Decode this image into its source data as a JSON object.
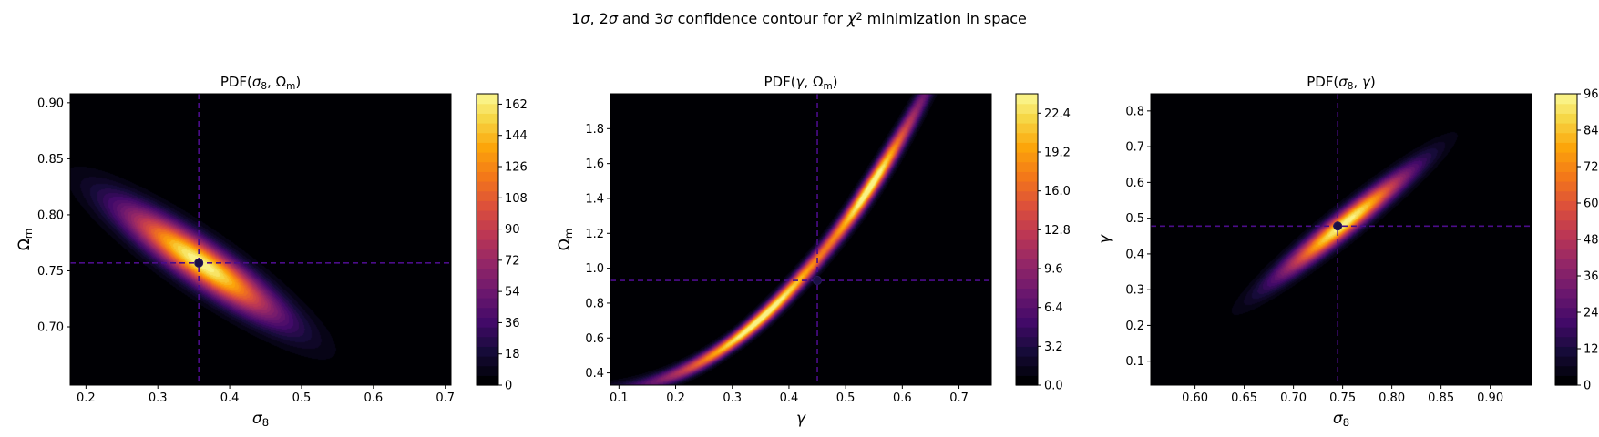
{
  "figure": {
    "suptitle_parts": [
      {
        "t": "1",
        "s": "n"
      },
      {
        "t": "σ",
        "s": "i"
      },
      {
        "t": ", 2",
        "s": "n"
      },
      {
        "t": "σ",
        "s": "i"
      },
      {
        "t": " and 3",
        "s": "n"
      },
      {
        "t": "σ",
        "s": "i"
      },
      {
        "t": " confidence contour for ",
        "s": "n"
      },
      {
        "t": "χ",
        "s": "i"
      },
      {
        "t": "2",
        "s": "sup"
      },
      {
        "t": " minimization in space",
        "s": "n"
      }
    ]
  },
  "colors": {
    "colormap": "inferno",
    "marker": "#1a1045",
    "crosshair": "#4b0c8a"
  },
  "chart_data": [
    {
      "type": "heatmap",
      "title_parts": [
        {
          "t": "PDF(",
          "s": "n"
        },
        {
          "t": "σ",
          "s": "i"
        },
        {
          "t": "8",
          "s": "sub"
        },
        {
          "t": ", Ω",
          "s": "n"
        },
        {
          "t": "m",
          "s": "sub"
        },
        {
          "t": ")",
          "s": "n"
        }
      ],
      "xlabel_parts": [
        {
          "t": "σ",
          "s": "i"
        },
        {
          "t": "8",
          "s": "sub"
        }
      ],
      "ylabel_parts": [
        {
          "t": "Ω",
          "s": "n"
        },
        {
          "t": "m",
          "s": "sub"
        }
      ],
      "xlim": [
        0.178,
        0.708
      ],
      "ylim": [
        0.648,
        0.908
      ],
      "xticks": [
        0.2,
        0.3,
        0.4,
        0.5,
        0.6,
        0.7
      ],
      "xtick_labels": [
        "0.2",
        "0.3",
        "0.4",
        "0.5",
        "0.6",
        "0.7"
      ],
      "yticks": [
        0.7,
        0.75,
        0.8,
        0.85,
        0.9
      ],
      "ytick_labels": [
        "0.70",
        "0.75",
        "0.80",
        "0.85",
        "0.90"
      ],
      "best_fit": {
        "x": 0.357,
        "y": 0.757
      },
      "peak": 168,
      "distribution": {
        "mx": 0.36,
        "my": 0.757,
        "sx": 0.072,
        "sy": 0.033,
        "rho": -0.9
      },
      "colorbar": {
        "min": 0,
        "max": 168,
        "ticks": [
          0,
          18,
          36,
          54,
          72,
          90,
          108,
          126,
          144,
          162
        ],
        "labels": [
          "0",
          "18",
          "36",
          "54",
          "72",
          "90",
          "108",
          "126",
          "144",
          "162"
        ]
      }
    },
    {
      "type": "heatmap",
      "title_parts": [
        {
          "t": "PDF(",
          "s": "n"
        },
        {
          "t": "γ",
          "s": "i"
        },
        {
          "t": ", Ω",
          "s": "n"
        },
        {
          "t": "m",
          "s": "sub"
        },
        {
          "t": ")",
          "s": "n"
        }
      ],
      "xlabel_parts": [
        {
          "t": "γ",
          "s": "i"
        }
      ],
      "ylabel_parts": [
        {
          "t": "Ω",
          "s": "n"
        },
        {
          "t": "m",
          "s": "sub"
        }
      ],
      "xlim": [
        0.085,
        0.757
      ],
      "ylim": [
        0.33,
        2.0
      ],
      "xticks": [
        0.1,
        0.2,
        0.3,
        0.4,
        0.5,
        0.6,
        0.7
      ],
      "xtick_labels": [
        "0.1",
        "0.2",
        "0.3",
        "0.4",
        "0.5",
        "0.6",
        "0.7"
      ],
      "yticks": [
        0.4,
        0.6,
        0.8,
        1.0,
        1.2,
        1.4,
        1.6,
        1.8
      ],
      "ytick_labels": [
        "0.4",
        "0.6",
        "0.8",
        "1.0",
        "1.2",
        "1.4",
        "1.6",
        "1.8"
      ],
      "best_fit": {
        "x": 0.45,
        "y": 0.93
      },
      "peak": 24,
      "distribution": {
        "curve": "banana",
        "ridge": {
          "a": 0.28,
          "b": 0.3,
          "c": 5.2
        },
        "blobs": [
          {
            "g": 0.36,
            "v": 24,
            "w": 0.1
          },
          {
            "g": 0.55,
            "v": 21,
            "w": 0.045
          },
          {
            "g": 0.63,
            "v": 4,
            "w": 0.03
          },
          {
            "g": 0.7,
            "v": 2.5,
            "w": 0.03
          }
        ],
        "width": 0.032,
        "width_growth": 0.09
      },
      "colorbar": {
        "min": 0,
        "max": 24,
        "ticks": [
          0,
          3.2,
          6.4,
          9.6,
          12.8,
          16.0,
          19.2,
          22.4
        ],
        "labels": [
          "0.0",
          "3.2",
          "6.4",
          "9.6",
          "12.8",
          "16.0",
          "19.2",
          "22.4"
        ]
      }
    },
    {
      "type": "heatmap",
      "title_parts": [
        {
          "t": "PDF(",
          "s": "n"
        },
        {
          "t": "σ",
          "s": "i"
        },
        {
          "t": "8",
          "s": "sub"
        },
        {
          "t": ", ",
          "s": "n"
        },
        {
          "t": "γ",
          "s": "i"
        },
        {
          "t": ")",
          "s": "n"
        }
      ],
      "xlabel_parts": [
        {
          "t": "σ",
          "s": "i"
        },
        {
          "t": "8",
          "s": "sub"
        }
      ],
      "ylabel_parts": [
        {
          "t": "γ",
          "s": "i"
        }
      ],
      "xlim": [
        0.555,
        0.942
      ],
      "ylim": [
        0.033,
        0.848
      ],
      "xticks": [
        0.6,
        0.65,
        0.7,
        0.75,
        0.8,
        0.85,
        0.9
      ],
      "xtick_labels": [
        "0.60",
        "0.65",
        "0.70",
        "0.75",
        "0.80",
        "0.85",
        "0.90"
      ],
      "yticks": [
        0.1,
        0.2,
        0.3,
        0.4,
        0.5,
        0.6,
        0.7,
        0.8
      ],
      "ytick_labels": [
        "0.1",
        "0.2",
        "0.3",
        "0.4",
        "0.5",
        "0.6",
        "0.7",
        "0.8"
      ],
      "best_fit": {
        "x": 0.745,
        "y": 0.478
      },
      "peak": 96,
      "distribution": {
        "mx": 0.752,
        "my": 0.485,
        "sx": 0.044,
        "sy": 0.098,
        "rho": 0.96
      },
      "colorbar": {
        "min": 0,
        "max": 96,
        "ticks": [
          0,
          12,
          24,
          36,
          48,
          60,
          72,
          84,
          96
        ],
        "labels": [
          "0",
          "12",
          "24",
          "36",
          "48",
          "60",
          "72",
          "84",
          "96"
        ]
      }
    }
  ]
}
